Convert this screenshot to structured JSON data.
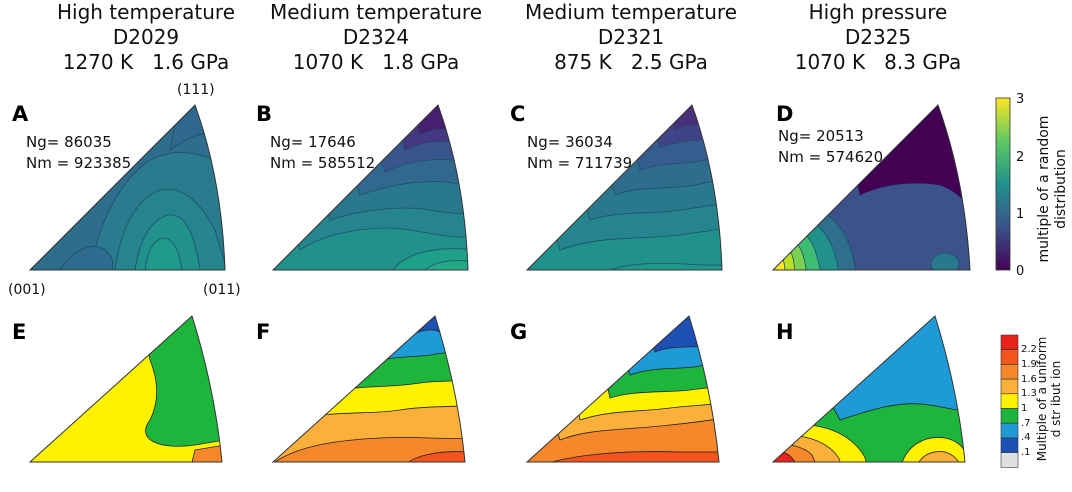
{
  "columns": [
    {
      "title": "High temperature",
      "sample": "D2029",
      "temperature": "1270 K",
      "pressure": "1.6 GPa"
    },
    {
      "title": "Medium temperature",
      "sample": "D2324",
      "temperature": "1070 K",
      "pressure": "1.8 GPa"
    },
    {
      "title": "Medium temperature",
      "sample": "D2321",
      "temperature": "875 K",
      "pressure": "2.5 GPa"
    },
    {
      "title": "High pressure",
      "sample": "D2325",
      "temperature": "1070 K",
      "pressure": "8.3 GPa"
    }
  ],
  "panels_top": [
    {
      "label": "A",
      "ng": "Ng= 86035",
      "nm": "Nm = 923385"
    },
    {
      "label": "B",
      "ng": "Ng= 17646",
      "nm": "Nm = 585512"
    },
    {
      "label": "C",
      "ng": "Ng= 36034",
      "nm": "Nm = 711739"
    },
    {
      "label": "D",
      "ng": "Ng= 20513",
      "nm": "Nm = 574620"
    }
  ],
  "panels_bottom": [
    {
      "label": "E"
    },
    {
      "label": "F"
    },
    {
      "label": "G"
    },
    {
      "label": "H"
    }
  ],
  "corners": {
    "top": "(111)",
    "left": "(001)",
    "right": "(011)"
  },
  "colorbar_top": {
    "title_line1": "multiple of a random",
    "title_line2": "distribution",
    "ticks": [
      "3",
      "2",
      "1",
      "0"
    ],
    "range": [
      0,
      3
    ],
    "colors": [
      "#fde725",
      "#5ec962",
      "#21918c",
      "#3b528b",
      "#440154"
    ]
  },
  "colorbar_bottom": {
    "title_line1": "Multiple of a uniform",
    "title_line2": "d str ibut ion",
    "ticks": [
      "2.2",
      "1.9",
      "1.6",
      "1.3",
      "1",
      ".7",
      ".4",
      ".1"
    ],
    "colors": [
      "#e8231c",
      "#f5541e",
      "#f6872b",
      "#fbb03b",
      "#fff200",
      "#1db53c",
      "#1e9bd7",
      "#1e4fb4",
      "#e0e0e0"
    ]
  }
}
